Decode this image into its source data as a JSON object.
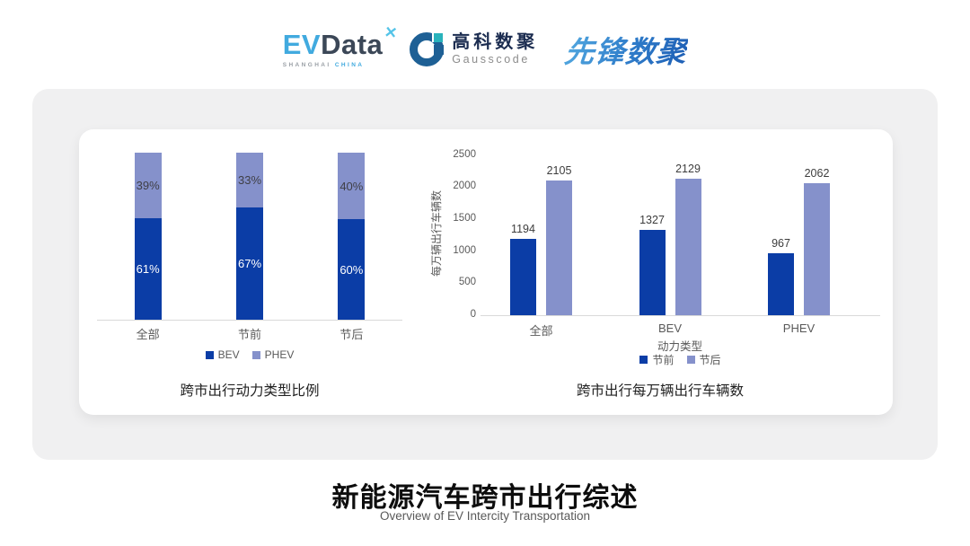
{
  "header": {
    "evdata": {
      "ev": "EV",
      "data": "Data",
      "star": "✕",
      "sub1": "SHANGHAI",
      "sub2": "CHINA"
    },
    "gausscode": {
      "cn": "高科数聚",
      "en": "Gausscode"
    },
    "xianfeng": {
      "text": "先锋数聚"
    }
  },
  "colors": {
    "bev_dark_blue": "#0B3DA6",
    "phev_periwinkle": "#8591CB",
    "axis_gray": "#d9d9d9",
    "label_gray": "#595959",
    "value_label": "#3d3d3d",
    "evdata_blue": "#41AADF",
    "gauss_navy": "#1E6095",
    "xianfeng_blue": "#2E7BC9"
  },
  "chart_data": [
    {
      "type": "bar",
      "variant": "stacked-percent",
      "title": "跨市出行动力类型比例",
      "categories": [
        "全部",
        "节前",
        "节后"
      ],
      "series": [
        {
          "name": "BEV",
          "color": "#0B3DA6",
          "values": [
            61,
            67,
            60
          ]
        },
        {
          "name": "PHEV",
          "color": "#8591CB",
          "values": [
            39,
            33,
            40
          ]
        }
      ],
      "value_suffix": "%",
      "ylim": [
        0,
        100
      ],
      "grid": false,
      "legend_position": "bottom"
    },
    {
      "type": "bar",
      "variant": "grouped",
      "title": "跨市出行每万辆出行车辆数",
      "categories": [
        "全部",
        "BEV",
        "PHEV"
      ],
      "series": [
        {
          "name": "节前",
          "color": "#0B3DA6",
          "values": [
            1194,
            1327,
            967
          ]
        },
        {
          "name": "节后",
          "color": "#8591CB",
          "values": [
            2105,
            2129,
            2062
          ]
        }
      ],
      "xlabel": "动力类型",
      "ylabel": "每万辆出行车辆数",
      "yticks": [
        0,
        500,
        1000,
        1500,
        2000,
        2500
      ],
      "ylim": [
        0,
        2500
      ],
      "grid": false,
      "legend_position": "bottom"
    }
  ],
  "footer": {
    "title": "新能源汽车跨市出行综述",
    "subtitle": "Overview of EV Intercity Transportation"
  }
}
